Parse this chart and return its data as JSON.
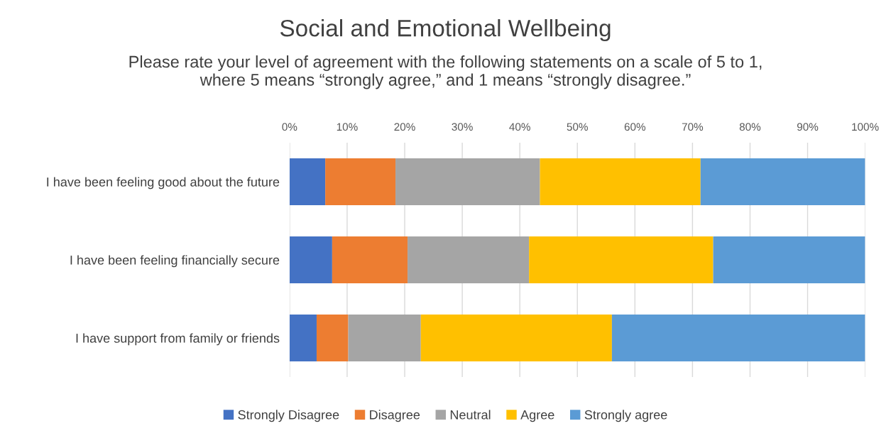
{
  "chart_data": {
    "type": "bar",
    "orientation": "horizontal",
    "stacked": true,
    "title": "Social and Emotional Wellbeing",
    "subtitle": "Please rate your level of agreement with the following statements on a scale of 5 to 1,\nwhere 5 means “strongly agree,” and 1 means “strongly disagree.”",
    "categories": [
      "I have been feeling good about the future",
      "I have been feeling financially secure",
      "I have support from family or friends"
    ],
    "series": [
      {
        "name": "Strongly Disagree",
        "color": "#4472c4",
        "values": [
          6.2,
          7.4,
          4.7
        ]
      },
      {
        "name": "Disagree",
        "color": "#ed7d31",
        "values": [
          12.2,
          13.1,
          5.5
        ]
      },
      {
        "name": "Neutral",
        "color": "#a5a5a5",
        "values": [
          25.1,
          21.1,
          12.6
        ]
      },
      {
        "name": "Agree",
        "color": "#ffc000",
        "values": [
          27.9,
          32.0,
          33.2
        ]
      },
      {
        "name": "Strongly agree",
        "color": "#5b9bd5",
        "values": [
          28.6,
          26.4,
          44.0
        ]
      }
    ],
    "xlim": [
      0,
      100
    ],
    "xticks": [
      {
        "value": 0,
        "label": "0%"
      },
      {
        "value": 10,
        "label": "10%"
      },
      {
        "value": 20,
        "label": "20%"
      },
      {
        "value": 30,
        "label": "30%"
      },
      {
        "value": 40,
        "label": "40%"
      },
      {
        "value": 50,
        "label": "50%"
      },
      {
        "value": 60,
        "label": "60%"
      },
      {
        "value": 70,
        "label": "70%"
      },
      {
        "value": 80,
        "label": "80%"
      },
      {
        "value": 90,
        "label": "90%"
      },
      {
        "value": 100,
        "label": "100%"
      }
    ],
    "grid": "x",
    "legend": "bottom"
  }
}
